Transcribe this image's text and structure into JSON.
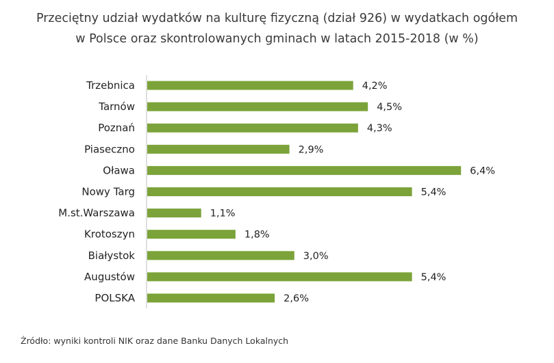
{
  "chart_data": {
    "type": "bar",
    "orientation": "horizontal",
    "title_lines": [
      "Przeciętny udział wydatków na kulturę fizyczną (dział 926) w wydatkach ogółem",
      "w Polsce oraz skontrolowanych gminach w latach 2015-2018  (w %)"
    ],
    "categories": [
      "Trzebnica",
      "Tarnów",
      "Poznań",
      "Piaseczno",
      "Oława",
      "Nowy Targ",
      "M.st.Warszawa",
      "Krotoszyn",
      "Białystok",
      "Augustów",
      "POLSKA"
    ],
    "values": [
      4.2,
      4.5,
      4.3,
      2.9,
      6.4,
      5.4,
      1.1,
      1.8,
      3.0,
      5.4,
      2.6
    ],
    "value_labels": [
      "4,2%",
      "4,5%",
      "4,3%",
      "2,9%",
      "6,4%",
      "5,4%",
      "1,1%",
      "1,8%",
      "3,0%",
      "5,4%",
      "2,6%"
    ],
    "bar_color": "#7ba33a",
    "grid": false,
    "legend": "none"
  },
  "source": "Źródło: wyniki kontroli NIK oraz dane Banku Danych Lokalnych"
}
